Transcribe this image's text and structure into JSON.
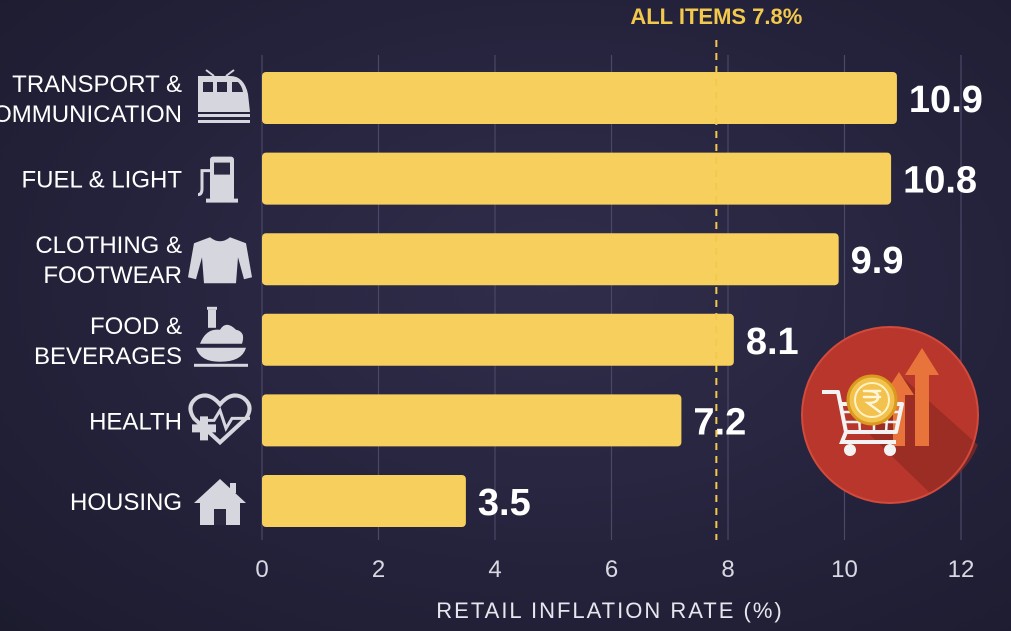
{
  "chart_data": {
    "type": "bar",
    "orientation": "horizontal",
    "categories": [
      [
        "TRANSPORT &",
        "COMMUNICATION"
      ],
      [
        "FUEL & LIGHT"
      ],
      [
        "CLOTHING &",
        "FOOTWEAR"
      ],
      [
        "FOOD &",
        "BEVERAGES"
      ],
      [
        "HEALTH"
      ],
      [
        "HOUSING"
      ]
    ],
    "category_icons": [
      "train-icon",
      "fuel-pump-icon",
      "sweater-icon",
      "food-bowl-icon",
      "health-heart-icon",
      "house-icon"
    ],
    "values": [
      10.9,
      10.8,
      9.9,
      8.1,
      7.2,
      3.5
    ],
    "value_labels": [
      "10.9",
      "10.8",
      "9.9",
      "8.1",
      "7.2",
      "3.5"
    ],
    "xlabel": "RETAIL INFLATION RATE (%)",
    "xlim": [
      0,
      12
    ],
    "xticks": [
      "0",
      "2",
      "4",
      "6",
      "8",
      "10",
      "12"
    ],
    "grid": "vertical",
    "reference_line": {
      "value": 7.8,
      "label": "ALL ITEMS 7.8%"
    },
    "decoration_icon": "rupee-cart-rising-arrows-icon",
    "colors": {
      "bar": "#f7cf5c",
      "reference": "#f2c94c",
      "text": "#ffffff",
      "background": "#25233c",
      "badge": "#c0392b"
    }
  }
}
